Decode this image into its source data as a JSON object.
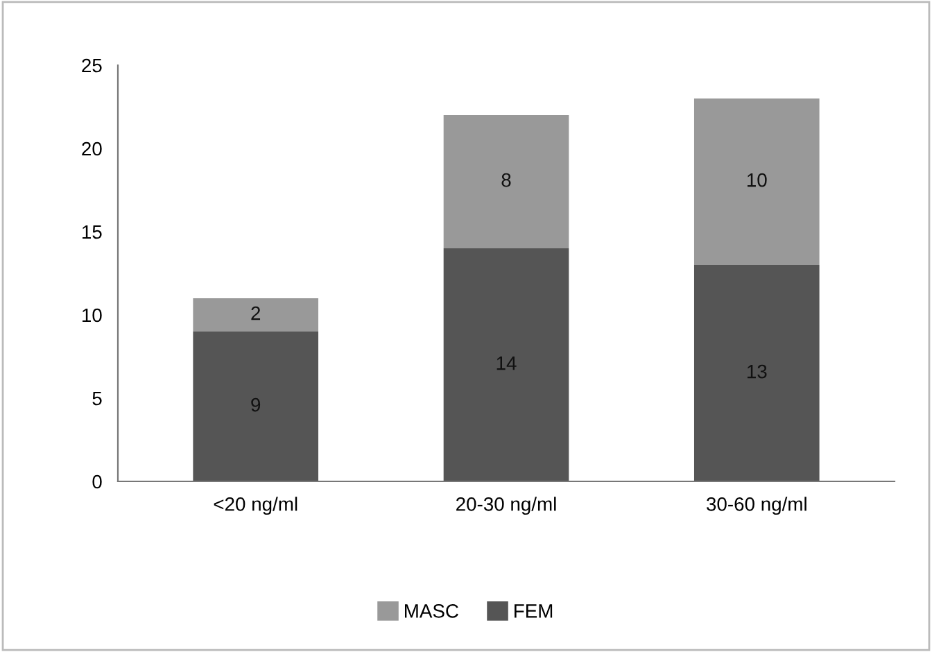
{
  "chart_data": {
    "type": "bar",
    "stacked": true,
    "categories": [
      "<20 ng/ml",
      "20-30 ng/ml",
      "30-60 ng/ml"
    ],
    "series": [
      {
        "name": "FEM",
        "color": "#555555",
        "values": [
          9,
          14,
          13
        ]
      },
      {
        "name": "MASC",
        "color": "#999999",
        "values": [
          2,
          8,
          10
        ]
      }
    ],
    "ylim": [
      0,
      25
    ],
    "yticks": [
      0,
      5,
      10,
      15,
      20,
      25
    ],
    "data_labels": true,
    "legend": "bottom",
    "grid": false
  }
}
